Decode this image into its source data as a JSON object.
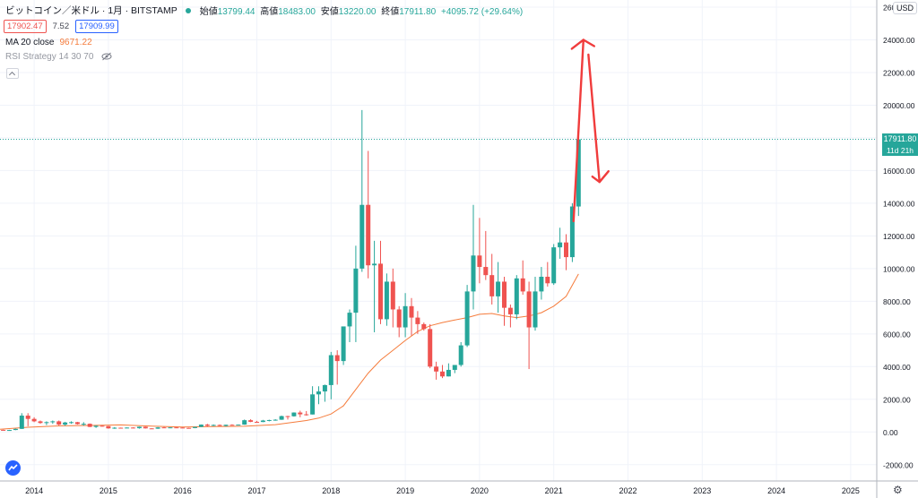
{
  "header": {
    "symbol": "ビットコイン／米ドル · 1月 · BITSTAMP",
    "open_label": "始値",
    "open": "13799.44",
    "high_label": "高値",
    "high": "18483.00",
    "low_label": "安値",
    "low": "13220.00",
    "close_label": "終値",
    "close": "17911.80",
    "change": "+4095.72 (+29.64%)",
    "bid": "17902.47",
    "spread": "7.52",
    "ask": "17909.99"
  },
  "indicators": {
    "ma_label": "MA 20 close",
    "ma_value": "9671.22",
    "rsi_label": "RSI Strategy 14 30 70"
  },
  "price_axis": {
    "currency": "USD",
    "last_price": "17911.80",
    "countdown": "11d 21h"
  },
  "colors": {
    "up": "#26a69a",
    "down": "#ef5350",
    "ma": "#f57c3c",
    "annotation": "#f03c3c"
  },
  "chart_data": {
    "type": "candlestick",
    "ylim": [
      -3000,
      26000
    ],
    "y_ticks": [
      -2000,
      0,
      2000,
      4000,
      6000,
      8000,
      10000,
      12000,
      14000,
      16000,
      18000,
      20000,
      22000,
      24000,
      26000
    ],
    "y_tick_labels": [
      "-2000.00",
      "0.00",
      "2000.00",
      "4000.00",
      "6000.00",
      "8000.00",
      "10000.00",
      "12000.00",
      "14000.00",
      "16000.00",
      "18000.00",
      "20000.00",
      "22000.00",
      "24000.00",
      "26000.00"
    ],
    "x_labels": [
      "2014",
      "2015",
      "2016",
      "2017",
      "2018",
      "2019",
      "2020",
      "2021",
      "2022",
      "2023",
      "2024",
      "2025"
    ],
    "x_label_months": [
      6,
      18,
      30,
      42,
      54,
      66,
      78,
      90,
      102,
      114,
      126,
      138
    ],
    "candles": [
      [
        0,
        120,
        140,
        90,
        130
      ],
      [
        1,
        130,
        140,
        100,
        110
      ],
      [
        2,
        110,
        130,
        100,
        120
      ],
      [
        3,
        120,
        200,
        110,
        190
      ],
      [
        4,
        190,
        1150,
        180,
        1000
      ],
      [
        5,
        1000,
        1150,
        350,
        800
      ],
      [
        6,
        800,
        900,
        600,
        650
      ],
      [
        7,
        650,
        700,
        500,
        550
      ],
      [
        8,
        550,
        650,
        420,
        600
      ],
      [
        9,
        600,
        700,
        500,
        650
      ],
      [
        10,
        650,
        700,
        400,
        450
      ],
      [
        11,
        450,
        620,
        380,
        580
      ],
      [
        12,
        580,
        650,
        500,
        600
      ],
      [
        13,
        600,
        620,
        450,
        480
      ],
      [
        14,
        480,
        600,
        380,
        500
      ],
      [
        15,
        500,
        520,
        300,
        310
      ],
      [
        16,
        310,
        400,
        250,
        380
      ],
      [
        17,
        380,
        420,
        330,
        360
      ],
      [
        18,
        360,
        370,
        200,
        220
      ],
      [
        19,
        220,
        300,
        190,
        260
      ],
      [
        20,
        260,
        270,
        210,
        240
      ],
      [
        21,
        240,
        280,
        230,
        270
      ],
      [
        22,
        270,
        290,
        220,
        230
      ],
      [
        23,
        230,
        330,
        200,
        320
      ],
      [
        24,
        320,
        330,
        210,
        220
      ],
      [
        25,
        220,
        230,
        180,
        200
      ],
      [
        26,
        200,
        300,
        190,
        280
      ],
      [
        27,
        280,
        310,
        240,
        250
      ],
      [
        28,
        250,
        290,
        230,
        280
      ],
      [
        29,
        280,
        300,
        250,
        270
      ],
      [
        30,
        270,
        280,
        240,
        250
      ],
      [
        31,
        250,
        260,
        230,
        240
      ],
      [
        32,
        240,
        320,
        230,
        310
      ],
      [
        33,
        310,
        460,
        300,
        450
      ],
      [
        34,
        450,
        500,
        320,
        380
      ],
      [
        35,
        380,
        460,
        360,
        430
      ],
      [
        36,
        430,
        460,
        360,
        370
      ],
      [
        37,
        370,
        450,
        340,
        440
      ],
      [
        38,
        440,
        470,
        400,
        420
      ],
      [
        39,
        420,
        460,
        400,
        450
      ],
      [
        40,
        450,
        760,
        440,
        720
      ],
      [
        41,
        720,
        780,
        600,
        620
      ],
      [
        42,
        620,
        680,
        580,
        610
      ],
      [
        43,
        610,
        740,
        600,
        700
      ],
      [
        44,
        700,
        750,
        650,
        730
      ],
      [
        45,
        730,
        780,
        690,
        750
      ],
      [
        46,
        750,
        1000,
        740,
        970
      ],
      [
        47,
        970,
        990,
        760,
        960
      ],
      [
        48,
        960,
        1200,
        940,
        1190
      ],
      [
        49,
        1190,
        1300,
        900,
        1080
      ],
      [
        50,
        1080,
        1280,
        1000,
        1070
      ],
      [
        51,
        1070,
        2800,
        1070,
        2300
      ],
      [
        52,
        2300,
        2800,
        1700,
        2480
      ],
      [
        53,
        2480,
        2900,
        1850,
        2870
      ],
      [
        54,
        2870,
        4900,
        2000,
        4700
      ],
      [
        55,
        4700,
        5000,
        2900,
        4340
      ],
      [
        56,
        4340,
        6200,
        4100,
        6460
      ],
      [
        57,
        6460,
        7500,
        5500,
        7300
      ],
      [
        58,
        7300,
        11400,
        5500,
        10000
      ],
      [
        59,
        10000,
        19700,
        9800,
        13900
      ],
      [
        60,
        13900,
        17200,
        9400,
        10200
      ],
      [
        61,
        10200,
        11700,
        6100,
        10300
      ],
      [
        62,
        10300,
        11700,
        6600,
        6900
      ],
      [
        63,
        6900,
        9700,
        6500,
        9200
      ],
      [
        64,
        9200,
        10000,
        6400,
        7500
      ],
      [
        65,
        7500,
        7700,
        5800,
        6400
      ],
      [
        66,
        6400,
        8500,
        5800,
        7700
      ],
      [
        67,
        7700,
        8200,
        5900,
        7000
      ],
      [
        68,
        7000,
        7400,
        6000,
        6600
      ],
      [
        69,
        6600,
        6700,
        6200,
        6300
      ],
      [
        70,
        6300,
        6600,
        3900,
        4000
      ],
      [
        71,
        4000,
        4300,
        3200,
        3700
      ],
      [
        72,
        3700,
        4100,
        3300,
        3400
      ],
      [
        73,
        3400,
        4200,
        3400,
        3800
      ],
      [
        74,
        3800,
        4100,
        3600,
        4100
      ],
      [
        75,
        4100,
        5500,
        4000,
        5300
      ],
      [
        76,
        5300,
        9000,
        5200,
        8600
      ],
      [
        77,
        8600,
        13900,
        7500,
        10800
      ],
      [
        78,
        10800,
        13100,
        9100,
        10100
      ],
      [
        79,
        10100,
        12300,
        9300,
        9600
      ],
      [
        80,
        9600,
        10900,
        7800,
        8300
      ],
      [
        81,
        8300,
        10400,
        7300,
        9200
      ],
      [
        82,
        9200,
        9500,
        6500,
        7600
      ],
      [
        83,
        7600,
        7800,
        6400,
        7200
      ],
      [
        84,
        7200,
        9600,
        6900,
        9400
      ],
      [
        85,
        9400,
        10500,
        8400,
        8600
      ],
      [
        86,
        8600,
        9200,
        3850,
        6400
      ],
      [
        87,
        6400,
        9500,
        6200,
        8600
      ],
      [
        88,
        8600,
        10100,
        8100,
        9500
      ],
      [
        89,
        9500,
        10400,
        8900,
        9100
      ],
      [
        90,
        9100,
        11500,
        9000,
        11300
      ],
      [
        91,
        11300,
        12500,
        10600,
        11600
      ],
      [
        92,
        11600,
        12100,
        9900,
        10700
      ],
      [
        93,
        10700,
        14000,
        10400,
        13800
      ],
      [
        94,
        13800,
        18483,
        13220,
        17911.8
      ]
    ],
    "ma20": [
      [
        0,
        150
      ],
      [
        5,
        290
      ],
      [
        10,
        370
      ],
      [
        15,
        400
      ],
      [
        20,
        430
      ],
      [
        25,
        360
      ],
      [
        30,
        300
      ],
      [
        35,
        330
      ],
      [
        40,
        350
      ],
      [
        45,
        450
      ],
      [
        50,
        700
      ],
      [
        52,
        850
      ],
      [
        54,
        1100
      ],
      [
        56,
        1600
      ],
      [
        58,
        2600
      ],
      [
        60,
        3600
      ],
      [
        62,
        4400
      ],
      [
        64,
        5000
      ],
      [
        66,
        5600
      ],
      [
        68,
        6150
      ],
      [
        70,
        6500
      ],
      [
        72,
        6700
      ],
      [
        74,
        6850
      ],
      [
        76,
        7000
      ],
      [
        78,
        7200
      ],
      [
        80,
        7250
      ],
      [
        82,
        7100
      ],
      [
        84,
        7000
      ],
      [
        86,
        7100
      ],
      [
        88,
        7300
      ],
      [
        90,
        7700
      ],
      [
        92,
        8300
      ],
      [
        94,
        9671.22
      ]
    ],
    "annotation_arrow": [
      [
        93.2,
        12900
      ],
      [
        94.8,
        24000
      ],
      [
        95.6,
        23100
      ],
      [
        97.4,
        15300
      ]
    ]
  }
}
